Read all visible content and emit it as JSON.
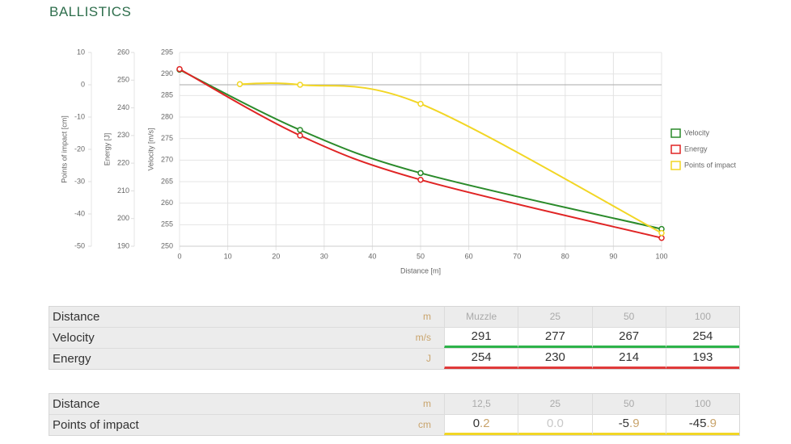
{
  "header": {
    "title": "BALLISTICS"
  },
  "chart_data": {
    "type": "line",
    "xlabel": "Distance [m]",
    "xlim": [
      0,
      100
    ],
    "xticks": [
      0,
      10,
      20,
      30,
      40,
      50,
      60,
      70,
      80,
      90,
      100
    ],
    "ylabel": "Velocity [m/s]",
    "ylim": [
      250,
      295
    ],
    "yticks": [
      250,
      255,
      260,
      265,
      270,
      275,
      280,
      285,
      290,
      295
    ],
    "y2label": "Energy [J]",
    "y2lim": [
      190,
      260
    ],
    "y2ticks": [
      190,
      200,
      210,
      220,
      230,
      240,
      250,
      260
    ],
    "y3label": "Points of impact [cm]",
    "y3lim": [
      -50,
      10
    ],
    "y3ticks": [
      -50,
      -40,
      -30,
      -20,
      -10,
      0,
      10
    ],
    "grid": true,
    "legend": "right",
    "series": [
      {
        "name": "Velocity",
        "color": "#2a8a2a",
        "axis": "y",
        "x": [
          0,
          25,
          50,
          100
        ],
        "values": [
          291,
          277,
          267,
          254
        ]
      },
      {
        "name": "Energy",
        "color": "#e02424",
        "axis": "y2",
        "x": [
          0,
          25,
          50,
          100
        ],
        "values": [
          254,
          230,
          214,
          193
        ]
      },
      {
        "name": "Points of impact",
        "color": "#f2d624",
        "axis": "y3",
        "x": [
          12.5,
          25,
          50,
          100
        ],
        "values": [
          0.2,
          0.0,
          -5.9,
          -45.9
        ]
      }
    ]
  },
  "tables": [
    {
      "color": null,
      "rows": [
        {
          "label": "Distance",
          "unit": "m",
          "values": [
            "Muzzle",
            "25",
            "50",
            "100"
          ]
        },
        {
          "label": "Velocity",
          "unit": "m/s",
          "color": "#2db34a",
          "values": [
            "291",
            "277",
            "267",
            "254"
          ]
        },
        {
          "label": "Energy",
          "unit": "J",
          "color": "#e03a3a",
          "values": [
            "254",
            "230",
            "214",
            "193"
          ]
        }
      ]
    },
    {
      "rows": [
        {
          "label": "Distance",
          "unit": "m",
          "values": [
            "12,5",
            "25",
            "50",
            "100"
          ]
        },
        {
          "label": "Points of impact",
          "unit": "cm",
          "color": "#f2d624",
          "split": true,
          "values": [
            "0.2",
            "0.0",
            "-5.9",
            "-45.9"
          ]
        }
      ]
    }
  ]
}
